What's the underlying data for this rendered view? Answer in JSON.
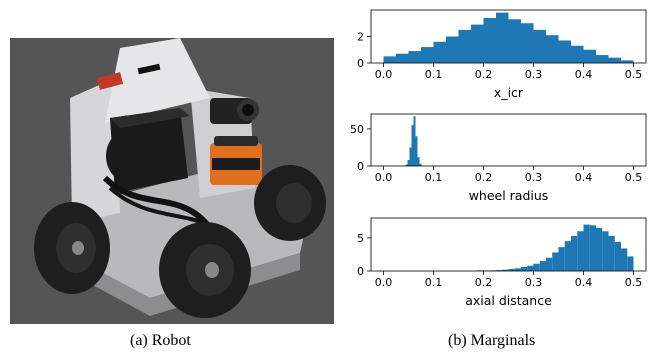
{
  "figure": {
    "caption_a": "(a) Robot",
    "caption_b": "(b) Marginals"
  },
  "photo": {
    "subject": "four-wheeled robot with lidar sensor, camera and electronics box on aluminium chassis",
    "colors": {
      "floor": "#5a5a5a",
      "chassis": "#c8c8c8",
      "wheel": "#222222",
      "box": "#1a1a1a",
      "lidar": "#e07020"
    }
  },
  "chart_data": [
    {
      "type": "bar",
      "xlabel": "x_icr",
      "ylabel": "",
      "xlim": [
        -0.025,
        0.525
      ],
      "ylim": [
        0,
        4.0
      ],
      "xticks": [
        "0.0",
        "0.1",
        "0.2",
        "0.3",
        "0.4",
        "0.5"
      ],
      "yticks": [
        "0",
        "2"
      ],
      "bin_width": 0.025,
      "bin_starts": [
        0.0,
        0.025,
        0.05,
        0.075,
        0.1,
        0.125,
        0.15,
        0.175,
        0.2,
        0.225,
        0.25,
        0.275,
        0.3,
        0.325,
        0.35,
        0.375,
        0.4,
        0.425,
        0.45,
        0.475
      ],
      "values": [
        0.5,
        0.7,
        0.9,
        1.2,
        1.6,
        2.0,
        2.5,
        2.9,
        3.4,
        3.8,
        3.3,
        3.0,
        2.5,
        2.1,
        1.7,
        1.3,
        1.0,
        0.6,
        0.4,
        0.2
      ],
      "color": "#1f77b4"
    },
    {
      "type": "bar",
      "xlabel": "wheel radius",
      "ylabel": "",
      "xlim": [
        -0.025,
        0.525
      ],
      "ylim": [
        0,
        70
      ],
      "xticks": [
        "0.0",
        "0.1",
        "0.2",
        "0.3",
        "0.4",
        "0.5"
      ],
      "yticks": [
        "0",
        "50"
      ],
      "bin_width": 0.004,
      "bin_starts": [
        0.044,
        0.048,
        0.052,
        0.056,
        0.06,
        0.064,
        0.068,
        0.072
      ],
      "values": [
        2,
        8,
        25,
        55,
        67,
        40,
        12,
        3
      ],
      "color": "#1f77b4"
    },
    {
      "type": "bar",
      "xlabel": "axial distance",
      "ylabel": "",
      "xlim": [
        -0.025,
        0.525
      ],
      "ylim": [
        0,
        8
      ],
      "xticks": [
        "0.0",
        "0.1",
        "0.2",
        "0.3",
        "0.4",
        "0.5"
      ],
      "yticks": [
        "0",
        "5"
      ],
      "bin_width": 0.0125,
      "bin_starts": [
        0.1875,
        0.2,
        0.2125,
        0.225,
        0.2375,
        0.25,
        0.2625,
        0.275,
        0.2875,
        0.3,
        0.3125,
        0.325,
        0.3375,
        0.35,
        0.3625,
        0.375,
        0.3875,
        0.4,
        0.4125,
        0.425,
        0.4375,
        0.45,
        0.4625,
        0.475,
        0.4875
      ],
      "values": [
        0.1,
        0.05,
        0.1,
        0.15,
        0.2,
        0.3,
        0.4,
        0.6,
        0.8,
        1.1,
        1.5,
        2.0,
        2.8,
        3.6,
        4.5,
        5.3,
        6.0,
        7.0,
        6.9,
        6.5,
        6.0,
        5.3,
        4.4,
        3.4,
        2.2
      ],
      "color": "#1f77b4"
    }
  ]
}
